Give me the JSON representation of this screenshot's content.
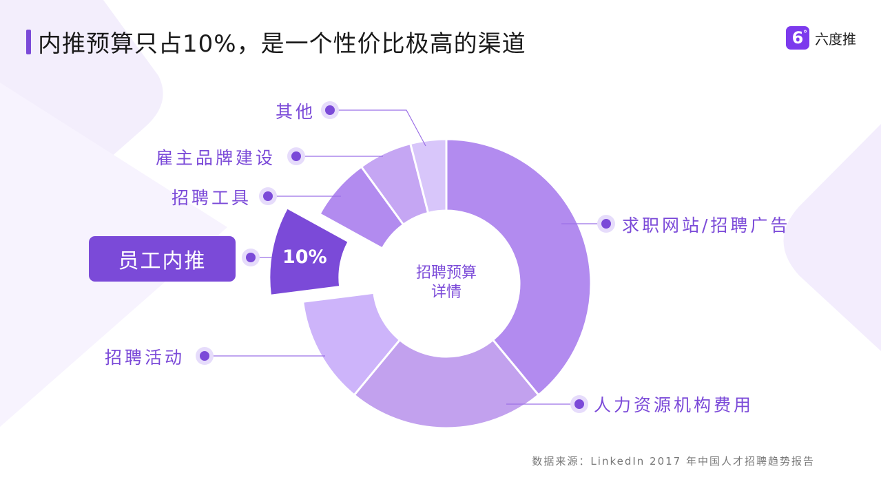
{
  "header": {
    "title": "内推预算只占10%，是一个性价比极高的渠道",
    "brand_logo_glyph": "6",
    "brand_logo_sup": "°",
    "brand_name": "六度推"
  },
  "colors": {
    "accent": "#7b4ad8",
    "slice_job_sites": "#b28bef",
    "slice_agency": "#c2a1ee",
    "slice_events": "#cdb4fa",
    "slice_referral": "#7b4ad8",
    "slice_tools": "#b28bef",
    "slice_brand": "#c5a6f3",
    "slice_other": "#d8c6fa"
  },
  "chart_data": {
    "type": "pie",
    "subtype": "donut",
    "title": "招聘预算详情",
    "center_label_line1": "招聘预算",
    "center_label_line2": "详情",
    "categories": [
      "求职网站/招聘广告",
      "人力资源机构费用",
      "招聘活动",
      "员工内推",
      "招聘工具",
      "雇主品牌建设",
      "其他"
    ],
    "values": [
      39,
      22,
      12,
      10,
      7,
      6,
      4
    ],
    "unit": "%",
    "highlighted": "员工内推",
    "highlighted_label": "10%",
    "exploded": [
      "员工内推"
    ],
    "legend_position": "callout labels"
  },
  "labels": {
    "job_sites": "求职网站/招聘广告",
    "agency": "人力资源机构费用",
    "events": "招聘活动",
    "referral": "员工内推",
    "tools": "招聘工具",
    "brand": "雇主品牌建设",
    "other": "其他",
    "referral_pct": "10%"
  },
  "footer": {
    "source": "数据来源：LinkedIn 2017 年中国人才招聘趋势报告"
  }
}
